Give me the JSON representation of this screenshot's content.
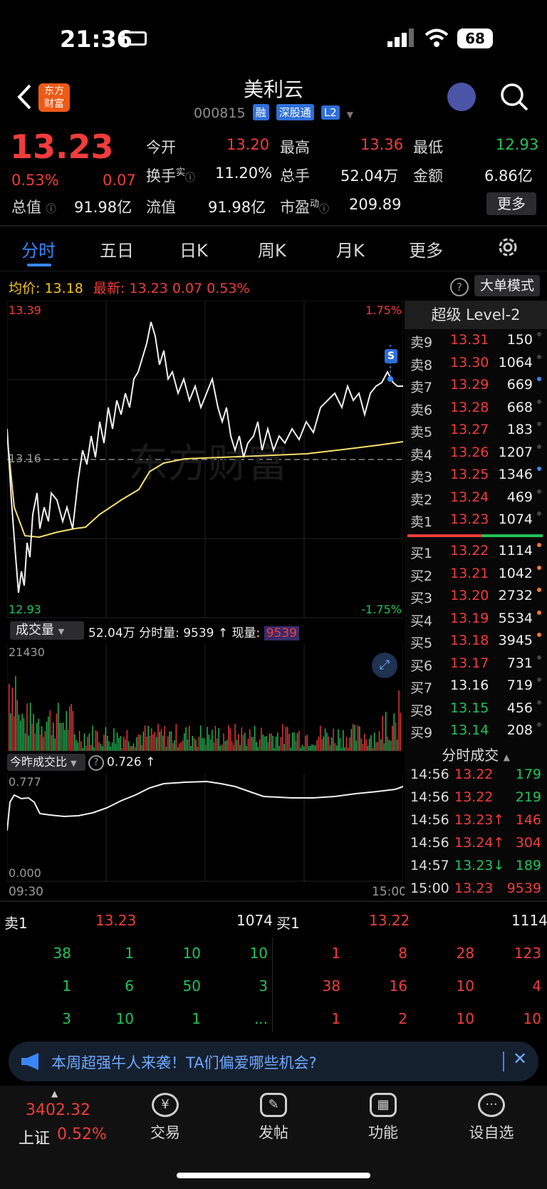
{
  "status_bar": {
    "time": "21:36",
    "battery": "68"
  },
  "header": {
    "title": "美利云",
    "code": "000815",
    "tags": [
      "融",
      "深股通",
      "L2"
    ],
    "logo_text": "东方财富"
  },
  "quote": {
    "price": "13.23",
    "change_pct": "0.53%",
    "change": "0.07",
    "total_cap_label": "总值",
    "total_cap": "91.98亿",
    "float_cap_label": "流值",
    "float_cap": "91.98亿",
    "open_label": "今开",
    "open": "13.20",
    "high_label": "最高",
    "high": "13.36",
    "low_label": "最低",
    "low": "12.93",
    "turnover_label": "换手",
    "turnover_sup": "实",
    "turnover": "11.20%",
    "volume_label": "总手",
    "volume": "52.04万",
    "amount_label": "金额",
    "amount": "6.86亿",
    "pe_label": "市盈",
    "pe_sup": "动",
    "pe": "209.89",
    "more_label": "更多"
  },
  "tabs": [
    "分时",
    "五日",
    "日K",
    "周K",
    "月K",
    "更多"
  ],
  "chart_header": {
    "avg_label": "均价:",
    "avg": "13.18",
    "latest_label": "最新:",
    "latest": "13.23",
    "latest_change": "0.07",
    "latest_pct": "0.53%",
    "big_order_label": "大单模式"
  },
  "price_chart": {
    "top_price": "13.39",
    "top_pct": "1.75%",
    "bottom_price": "12.93",
    "bottom_pct": "-1.75%",
    "prev_close": "13.16",
    "marker": "S"
  },
  "volume_panel": {
    "selector": "成交量",
    "total": "52.04万",
    "minute_vol_label": "分时量:",
    "minute_vol": "9539 ↑",
    "current_vol_label": "现量:",
    "current_vol": "9539",
    "max": "21430"
  },
  "ratio_panel": {
    "selector": "今昨成交比",
    "value": "0.726 ↑",
    "max": "0.777",
    "min": "0.000",
    "time_start": "09:30",
    "time_end": "15:00"
  },
  "level2": {
    "title": "超级 Level-2",
    "asks": [
      {
        "label": "卖9",
        "price": "13.31",
        "vol": "150"
      },
      {
        "label": "卖8",
        "price": "13.30",
        "vol": "1064"
      },
      {
        "label": "卖7",
        "price": "13.29",
        "vol": "669"
      },
      {
        "label": "卖6",
        "price": "13.28",
        "vol": "668"
      },
      {
        "label": "卖5",
        "price": "13.27",
        "vol": "183"
      },
      {
        "label": "卖4",
        "price": "13.26",
        "vol": "1207"
      },
      {
        "label": "卖3",
        "price": "13.25",
        "vol": "1346"
      },
      {
        "label": "卖2",
        "price": "13.24",
        "vol": "469"
      },
      {
        "label": "卖1",
        "price": "13.23",
        "vol": "1074"
      }
    ],
    "bids": [
      {
        "label": "买1",
        "price": "13.22",
        "vol": "1114"
      },
      {
        "label": "买2",
        "price": "13.21",
        "vol": "1042"
      },
      {
        "label": "买3",
        "price": "13.20",
        "vol": "2732"
      },
      {
        "label": "买4",
        "price": "13.19",
        "vol": "5534"
      },
      {
        "label": "买5",
        "price": "13.18",
        "vol": "3945"
      },
      {
        "label": "买6",
        "price": "13.17",
        "vol": "731"
      },
      {
        "label": "买7",
        "price": "13.16",
        "vol": "719"
      },
      {
        "label": "买8",
        "price": "13.15",
        "vol": "456"
      },
      {
        "label": "买9",
        "price": "13.14",
        "vol": "208"
      }
    ],
    "trades_title": "分时成交",
    "trades": [
      {
        "time": "14:56",
        "price": "13.22",
        "vol": "179"
      },
      {
        "time": "14:56",
        "price": "13.22",
        "vol": "219"
      },
      {
        "time": "14:56",
        "price": "13.23↑",
        "vol": "146"
      },
      {
        "time": "14:56",
        "price": "13.24↑",
        "vol": "304"
      },
      {
        "time": "14:57",
        "price": "13.23↓",
        "vol": "189"
      },
      {
        "time": "15:00",
        "price": "13.23",
        "vol": "9539"
      }
    ]
  },
  "order_queue": {
    "ask_label": "卖1",
    "ask_price": "13.23",
    "ask_vol": "1074",
    "bid_label": "买1",
    "bid_price": "13.22",
    "bid_vol": "1114",
    "ask_rows": [
      [
        "38",
        "1",
        "10",
        "10"
      ],
      [
        "1",
        "6",
        "50",
        "3"
      ],
      [
        "3",
        "10",
        "1",
        "..."
      ]
    ],
    "bid_rows": [
      [
        "1",
        "8",
        "28",
        "123"
      ],
      [
        "38",
        "16",
        "10",
        "4"
      ],
      [
        "1",
        "2",
        "10",
        "10"
      ]
    ]
  },
  "banner": {
    "text": "本周超强牛人来袭！TA们偏爱哪些机会?"
  },
  "bottom_nav": {
    "index_value": "3402.32",
    "index_name": "上证",
    "index_pct": "0.52%",
    "items": [
      "交易",
      "发帖",
      "功能",
      "设自选"
    ]
  },
  "colors": {
    "up": "#f23c3c",
    "down": "#22c25a",
    "avg_line": "#f5e06e",
    "accent": "#2e6fd8"
  }
}
